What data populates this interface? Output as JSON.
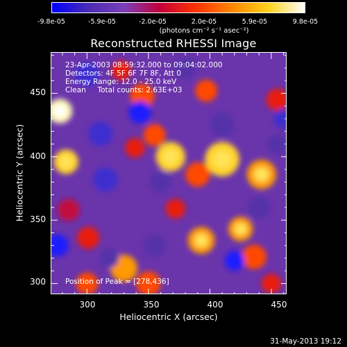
{
  "colorbar": {
    "ticks": [
      "-9.8e-05",
      "-5.9e-05",
      "-2.0e-05",
      "2.0e-05",
      "5.9e-05",
      "9.8e-05"
    ],
    "units": "(photons cm⁻² s⁻¹ asec⁻²)",
    "colors": [
      "#0000ff",
      "#4a2bb5",
      "#7a3fb8",
      "#c4003a",
      "#ff3300",
      "#ff8800",
      "#ffd21a",
      "#ffffff"
    ]
  },
  "title": "Reconstructed RHESSI Image",
  "annotations": {
    "time_range": "23-Apr-2003 08:59:32.000 to 09:04:02.000",
    "detectors": "Detectors: 4F 5F 6F 7F 8F, Att 0",
    "energy": "Energy Range: 12.0 - 25.0 keV",
    "clean": "Clean     Total counts: 2.63E+03",
    "peak": "Position of Peak = [278,436]"
  },
  "axes": {
    "xlabel": "Heliocentric X (arcsec)",
    "ylabel": "Heliocentric Y (arcsec)",
    "xticks": [
      "300",
      "350",
      "400",
      "450"
    ],
    "yticks": [
      "300",
      "350",
      "400",
      "450"
    ]
  },
  "timestamp": "31-May-2013 19:12",
  "chart_data": {
    "type": "heatmap",
    "title": "Reconstructed RHESSI Image",
    "xlabel": "Heliocentric X (arcsec)",
    "ylabel": "Heliocentric Y (arcsec)",
    "xlim": [
      271,
      463
    ],
    "ylim": [
      291,
      482
    ],
    "color_range": [
      -9.8e-05,
      9.8e-05
    ],
    "peak": [
      278,
      436
    ],
    "blobs": [
      {
        "x": 278,
        "y": 436,
        "v": 1.0,
        "r": 10
      },
      {
        "x": 283,
        "y": 396,
        "v": 0.85,
        "r": 10
      },
      {
        "x": 368,
        "y": 400,
        "v": 0.85,
        "r": 12
      },
      {
        "x": 410,
        "y": 398,
        "v": 0.9,
        "r": 14
      },
      {
        "x": 442,
        "y": 386,
        "v": 0.75,
        "r": 12
      },
      {
        "x": 390,
        "y": 386,
        "v": 0.55,
        "r": 10
      },
      {
        "x": 355,
        "y": 417,
        "v": 0.5,
        "r": 9
      },
      {
        "x": 345,
        "y": 448,
        "v": 0.55,
        "r": 10
      },
      {
        "x": 397,
        "y": 452,
        "v": 0.5,
        "r": 9
      },
      {
        "x": 328,
        "y": 468,
        "v": 0.35,
        "r": 8
      },
      {
        "x": 393,
        "y": 334,
        "v": 0.75,
        "r": 11
      },
      {
        "x": 425,
        "y": 343,
        "v": 0.7,
        "r": 10
      },
      {
        "x": 436,
        "y": 321,
        "v": 0.6,
        "r": 10
      },
      {
        "x": 330,
        "y": 312,
        "v": 0.65,
        "r": 11
      },
      {
        "x": 350,
        "y": 300,
        "v": 0.6,
        "r": 10
      },
      {
        "x": 300,
        "y": 300,
        "v": 0.5,
        "r": 9
      },
      {
        "x": 301,
        "y": 336,
        "v": 0.4,
        "r": 9
      },
      {
        "x": 372,
        "y": 359,
        "v": 0.35,
        "r": 8
      },
      {
        "x": 455,
        "y": 445,
        "v": 0.4,
        "r": 9
      },
      {
        "x": 450,
        "y": 300,
        "v": 0.45,
        "r": 8
      },
      {
        "x": 339,
        "y": 407,
        "v": 0.3,
        "r": 8
      },
      {
        "x": 285,
        "y": 358,
        "v": 0.25,
        "r": 9
      },
      {
        "x": 343,
        "y": 435,
        "v": -1.0,
        "r": 9
      },
      {
        "x": 276,
        "y": 330,
        "v": -0.9,
        "r": 9
      },
      {
        "x": 420,
        "y": 318,
        "v": -0.8,
        "r": 8
      },
      {
        "x": 460,
        "y": 430,
        "v": -0.7,
        "r": 8
      },
      {
        "x": 300,
        "y": 465,
        "v": -0.5,
        "r": 10
      },
      {
        "x": 311,
        "y": 418,
        "v": -0.55,
        "r": 10
      },
      {
        "x": 315,
        "y": 382,
        "v": -0.5,
        "r": 10
      },
      {
        "x": 360,
        "y": 380,
        "v": -0.4,
        "r": 9
      },
      {
        "x": 410,
        "y": 425,
        "v": -0.4,
        "r": 10
      },
      {
        "x": 440,
        "y": 360,
        "v": -0.35,
        "r": 9
      },
      {
        "x": 380,
        "y": 470,
        "v": -0.3,
        "r": 9
      },
      {
        "x": 355,
        "y": 330,
        "v": -0.35,
        "r": 9
      },
      {
        "x": 455,
        "y": 410,
        "v": -0.3,
        "r": 8
      },
      {
        "x": 318,
        "y": 320,
        "v": -0.3,
        "r": 8
      }
    ]
  }
}
